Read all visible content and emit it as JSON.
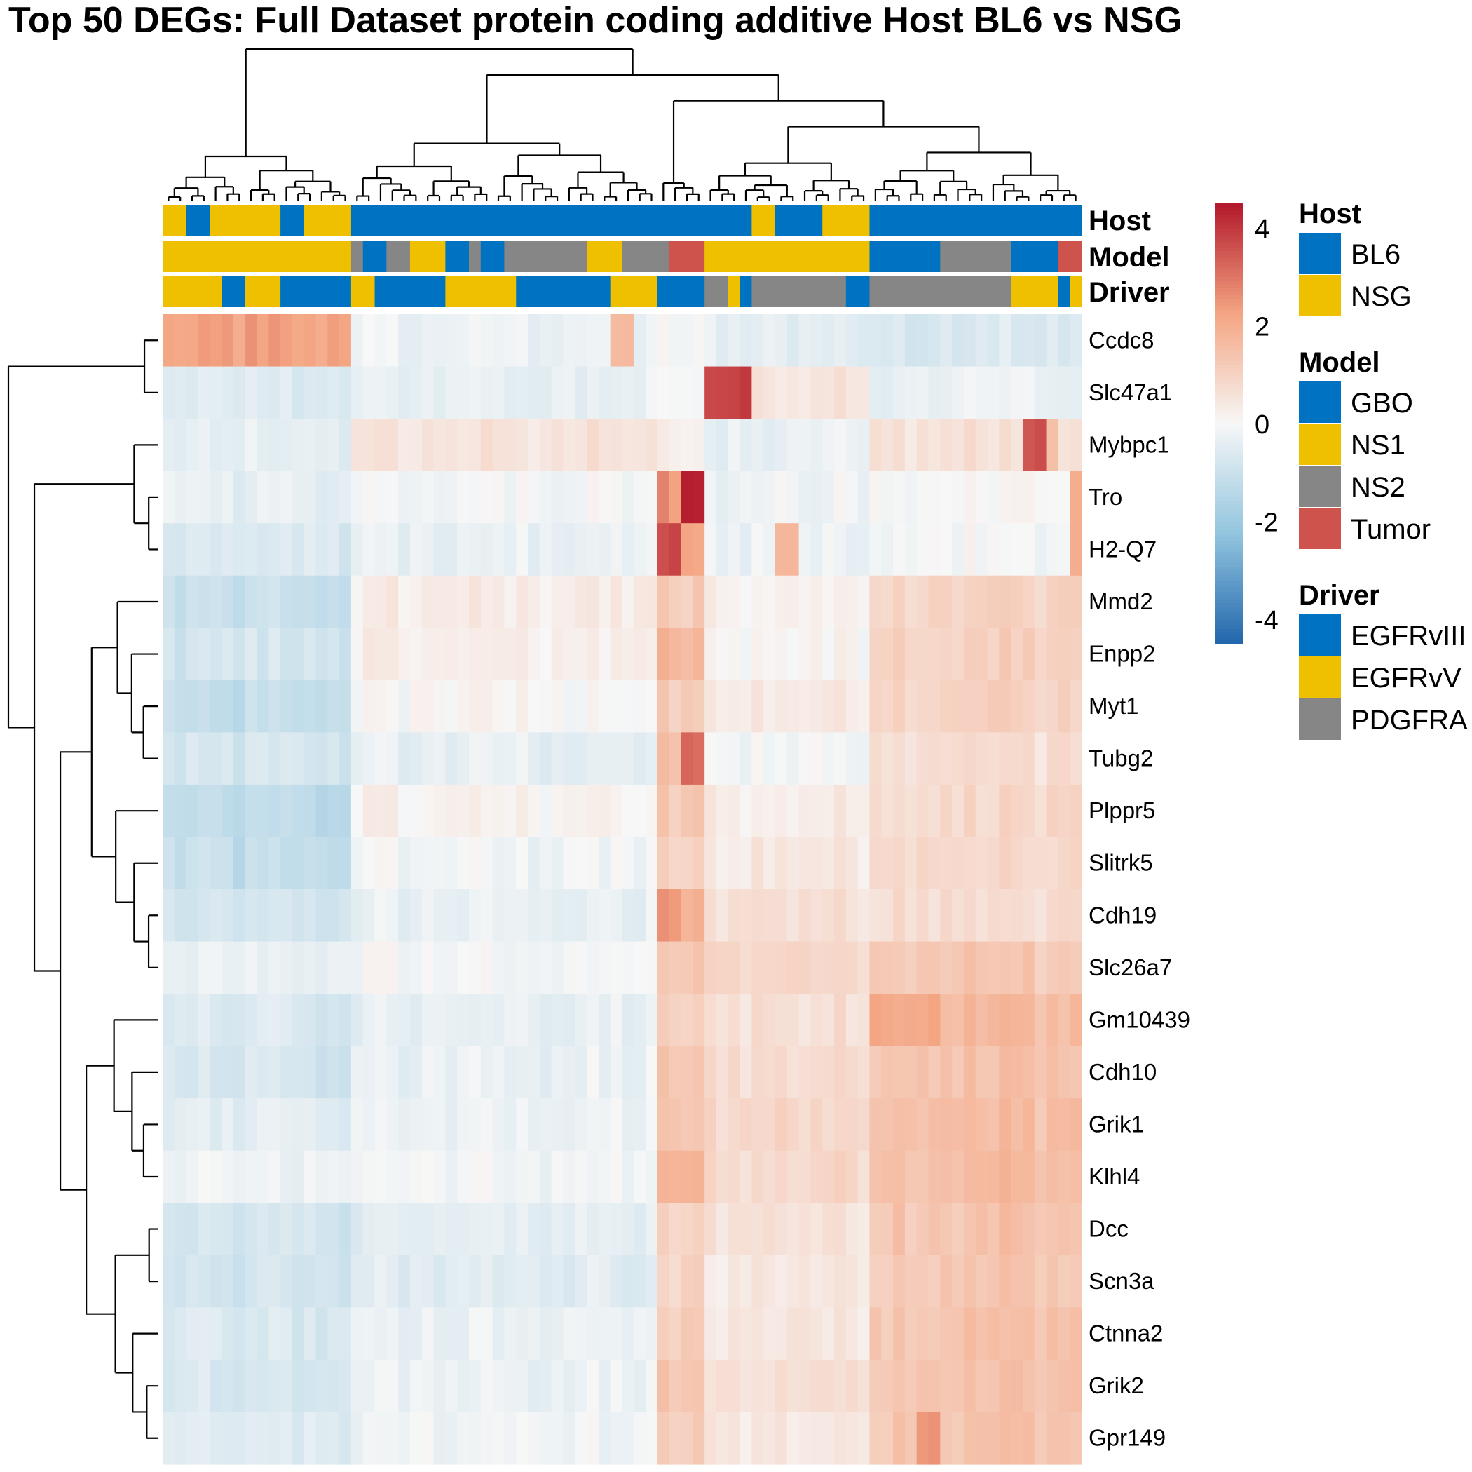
{
  "chart_data": {
    "type": "heatmap",
    "title": "Top 50 DEGs: Full Dataset protein coding additive Host BL6 vs NSG",
    "rows": [
      "Ccdc8",
      "Slc47a1",
      "Mybpc1",
      "Tro",
      "H2-Q7",
      "Mmd2",
      "Enpp2",
      "Myt1",
      "Tubg2",
      "Plppr5",
      "Slitrk5",
      "Cdh19",
      "Slc26a7",
      "Gm10439",
      "Cdh10",
      "Grik1",
      "Klhl4",
      "Dcc",
      "Scn3a",
      "Ctnna2",
      "Grik2",
      "Gpr149"
    ],
    "column_count": 78,
    "annotation_tracks": [
      "Host",
      "Model",
      "Driver"
    ],
    "annotations": {
      "Host": "NNBBNNNNNNBBNNNNBBBBBBBBBBBBBBBBBBBBBBBBBBBBBBBBBBNNBBBBNNNNBBBBBBBBBBBBBBBBBB",
      "Model": "11111111111111112GG22111GG2GG22222221112222SSS11111111111111GGGGGG222222GGGGSS",
      "Driver": "VVVVVGGVVVGGGGGGVVGGGGGGVVVVVVGGGGGGGGVVVVGGGGPPVGPPPPPPPPGGPPPPPPPPPPPPVVVVGV"
    },
    "legends": {
      "Host": [
        {
          "label": "BL6",
          "color": "#0072C2"
        },
        {
          "label": "NSG",
          "color": "#EFC000"
        }
      ],
      "Model": [
        {
          "label": "GBO",
          "color": "#0072C2"
        },
        {
          "label": "NS1",
          "color": "#EFC000"
        },
        {
          "label": "NS2",
          "color": "#868686"
        },
        {
          "label": "Tumor",
          "color": "#CD534C"
        }
      ],
      "Driver": [
        {
          "label": "EGFRvIII",
          "color": "#0072C2"
        },
        {
          "label": "EGFRvV",
          "color": "#EFC000"
        },
        {
          "label": "PDGFRA",
          "color": "#868686"
        }
      ]
    },
    "colorbar": {
      "ticks": [
        "4",
        "2",
        "0",
        "-2",
        "-4"
      ],
      "min": -4.5,
      "max": 4.5,
      "low_color": "#2166AC",
      "mid_color": "#F7F7F7",
      "high_color": "#B2182B"
    },
    "column_groups": [
      {
        "name": "A",
        "cols": [
          0,
          16
        ],
        "z": [
          2.2,
          -0.5,
          -0.4,
          -0.5,
          -0.6,
          -1.1,
          -1.0,
          -1.2,
          -0.6,
          -1.3,
          -1.2,
          -0.8,
          -0.4,
          -0.7,
          -0.7,
          -0.6,
          -0.4,
          -0.8,
          -0.7,
          -0.7,
          -0.8,
          -0.6
        ]
      },
      {
        "name": "B",
        "cols": [
          16,
          42
        ],
        "z": [
          -0.3,
          -0.3,
          0.5,
          -0.2,
          -0.2,
          0.3,
          0.1,
          0.0,
          -0.2,
          0.1,
          -0.2,
          -0.3,
          -0.2,
          -0.4,
          -0.2,
          -0.3,
          -0.3,
          -0.4,
          -0.4,
          -0.3,
          -0.3,
          -0.3
        ]
      },
      {
        "name": "C",
        "cols": [
          42,
          46
        ],
        "z": [
          -0.2,
          -0.1,
          0.2,
          2.4,
          2.2,
          1.1,
          1.6,
          1.1,
          1.8,
          1.2,
          0.9,
          1.7,
          1.2,
          1.0,
          1.3,
          1.2,
          1.6,
          1.0,
          1.0,
          1.1,
          1.2,
          1.0
        ]
      },
      {
        "name": "D",
        "cols": [
          46,
          60
        ],
        "z": [
          -0.4,
          0.5,
          -0.3,
          -0.3,
          -0.1,
          0.2,
          0.0,
          0.4,
          0.1,
          0.3,
          0.4,
          0.7,
          0.8,
          0.6,
          0.9,
          0.8,
          0.7,
          0.6,
          0.5,
          0.5,
          0.6,
          0.3
        ]
      },
      {
        "name": "E",
        "cols": [
          60,
          78
        ],
        "z": [
          -0.7,
          -0.2,
          0.6,
          -0.1,
          0.1,
          1.0,
          0.9,
          1.0,
          0.9,
          0.8,
          0.8,
          0.8,
          1.2,
          1.6,
          1.5,
          1.5,
          1.4,
          1.4,
          1.4,
          1.4,
          1.4,
          1.3
        ]
      }
    ],
    "highlights": [
      {
        "row": "Ccdc8",
        "cols": [
          0,
          2
        ],
        "z": 2.4
      },
      {
        "row": "Ccdc8",
        "cols": [
          38,
          40
        ],
        "z": 1.8
      },
      {
        "row": "Slc47a1",
        "cols": [
          46,
          50
        ],
        "z": 4.0
      },
      {
        "row": "Mybpc1",
        "cols": [
          73,
          75
        ],
        "z": 3.8
      },
      {
        "row": "Mybpc1",
        "cols": [
          75,
          76
        ],
        "z": 1.8
      },
      {
        "row": "Tro",
        "cols": [
          44,
          46
        ],
        "z": 4.5
      },
      {
        "row": "Tro",
        "cols": [
          77,
          78
        ],
        "z": 2.2
      },
      {
        "row": "H2-Q7",
        "cols": [
          42,
          44
        ],
        "z": 3.9
      },
      {
        "row": "H2-Q7",
        "cols": [
          52,
          54
        ],
        "z": 2.0
      },
      {
        "row": "H2-Q7",
        "cols": [
          77,
          78
        ],
        "z": 2.2
      },
      {
        "row": "Tubg2",
        "cols": [
          44,
          46
        ],
        "z": 3.4
      },
      {
        "row": "Cdh19",
        "cols": [
          42,
          44
        ],
        "z": 2.6
      },
      {
        "row": "Gm10439",
        "cols": [
          60,
          66
        ],
        "z": 2.3
      },
      {
        "row": "Gpr149",
        "cols": [
          64,
          66
        ],
        "z": 2.6
      }
    ]
  }
}
